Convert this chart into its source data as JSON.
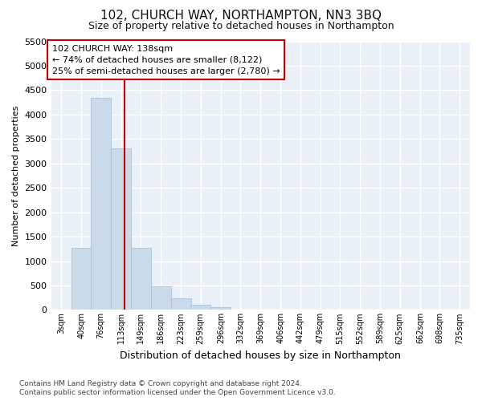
{
  "title": "102, CHURCH WAY, NORTHAMPTON, NN3 3BQ",
  "subtitle": "Size of property relative to detached houses in Northampton",
  "xlabel": "Distribution of detached houses by size in Northampton",
  "ylabel": "Number of detached properties",
  "footer_line1": "Contains HM Land Registry data © Crown copyright and database right 2024.",
  "footer_line2": "Contains public sector information licensed under the Open Government Licence v3.0.",
  "annotation_line1": "102 CHURCH WAY: 138sqm",
  "annotation_line2": "← 74% of detached houses are smaller (8,122)",
  "annotation_line3": "25% of semi-detached houses are larger (2,780) →",
  "bar_color": "#c9daea",
  "bar_edge_color": "#a8c4d8",
  "vline_color": "#cc0000",
  "vline_position": 138,
  "categories": [
    "3sqm",
    "40sqm",
    "76sqm",
    "113sqm",
    "149sqm",
    "186sqm",
    "223sqm",
    "259sqm",
    "296sqm",
    "332sqm",
    "369sqm",
    "406sqm",
    "442sqm",
    "479sqm",
    "515sqm",
    "552sqm",
    "589sqm",
    "625sqm",
    "662sqm",
    "698sqm",
    "735sqm"
  ],
  "bin_edges": [
    3,
    40,
    76,
    113,
    149,
    186,
    223,
    259,
    296,
    332,
    369,
    406,
    442,
    479,
    515,
    552,
    589,
    625,
    662,
    698,
    735
  ],
  "bin_width": 37,
  "values": [
    0,
    1270,
    4350,
    3300,
    1270,
    480,
    240,
    100,
    60,
    0,
    0,
    0,
    0,
    0,
    0,
    0,
    0,
    0,
    0,
    0,
    0
  ],
  "ylim": [
    0,
    5500
  ],
  "yticks": [
    0,
    500,
    1000,
    1500,
    2000,
    2500,
    3000,
    3500,
    4000,
    4500,
    5000,
    5500
  ],
  "background_color": "#ffffff",
  "plot_bg_color": "#eaf0f8",
  "grid_color": "#ffffff",
  "annotation_box_color": "#ffffff",
  "annotation_box_edge": "#cc0000",
  "title_fontsize": 11,
  "subtitle_fontsize": 9,
  "ylabel_fontsize": 8,
  "xlabel_fontsize": 9,
  "footer_fontsize": 6.5,
  "tick_fontsize": 8,
  "xtick_fontsize": 7
}
